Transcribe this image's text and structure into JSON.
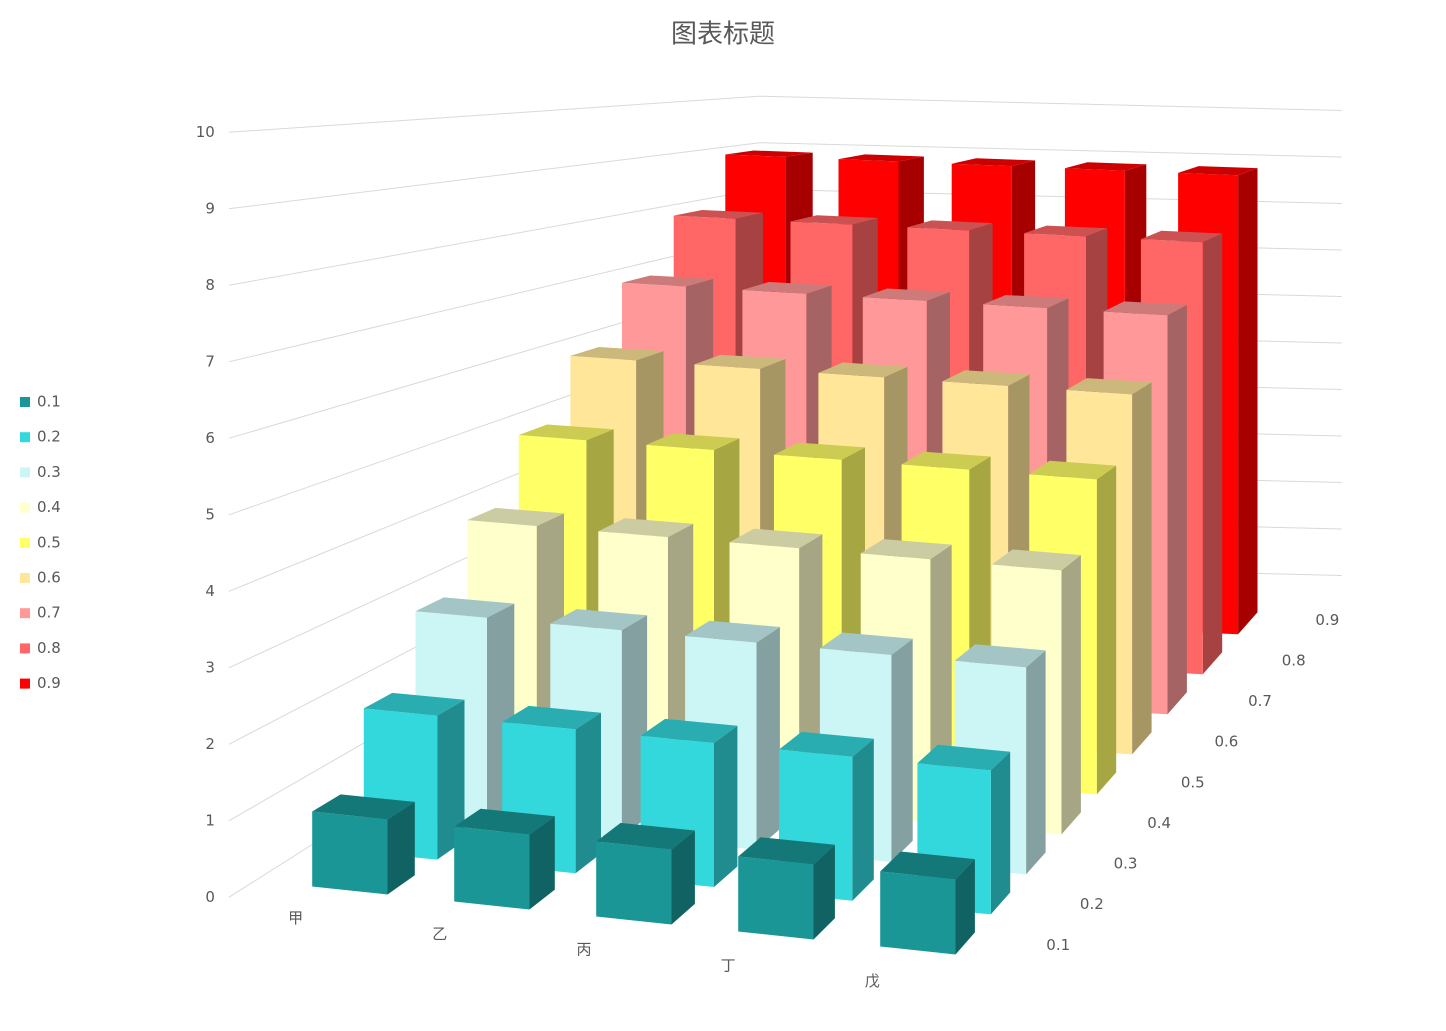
{
  "chart_data": {
    "type": "bar3d",
    "title": "图表标题",
    "categories": [
      "甲",
      "乙",
      "丙",
      "丁",
      "戊"
    ],
    "series": [
      {
        "name": "0.1",
        "color": "#1a9696",
        "values": [
          1,
          1,
          1,
          1,
          1
        ]
      },
      {
        "name": "0.2",
        "color": "#33d8dc",
        "values": [
          2,
          2,
          2,
          2,
          2
        ]
      },
      {
        "name": "0.3",
        "color": "#ccf6f6",
        "values": [
          3,
          3,
          3,
          3,
          3
        ]
      },
      {
        "name": "0.4",
        "color": "#ffffcc",
        "values": [
          4,
          4,
          4,
          4,
          4
        ]
      },
      {
        "name": "0.5",
        "color": "#ffff66",
        "values": [
          5,
          5,
          5,
          5,
          5
        ]
      },
      {
        "name": "0.6",
        "color": "#ffe699",
        "values": [
          6,
          6,
          6,
          6,
          6
        ]
      },
      {
        "name": "0.7",
        "color": "#ff9999",
        "values": [
          7,
          7,
          7,
          7,
          7
        ]
      },
      {
        "name": "0.8",
        "color": "#ff6666",
        "values": [
          8,
          8,
          8,
          8,
          8
        ]
      },
      {
        "name": "0.9",
        "color": "#ff0000",
        "values": [
          9,
          9,
          9,
          9,
          9
        ]
      }
    ],
    "ylim": [
      0,
      10
    ],
    "yticks": [
      0,
      1,
      2,
      3,
      4,
      5,
      6,
      7,
      8,
      9,
      10
    ],
    "grid": true,
    "legend": "left"
  }
}
